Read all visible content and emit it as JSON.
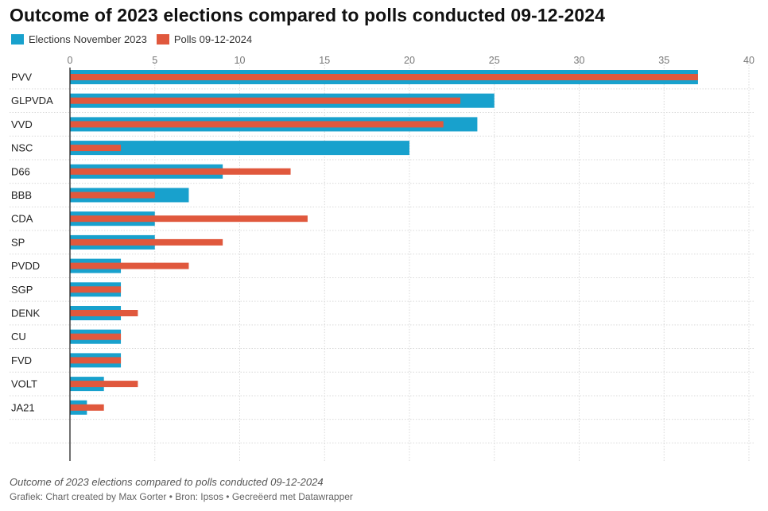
{
  "title": "Outcome of 2023 elections compared to polls conducted 09-12-2024",
  "colors": {
    "elections": "#18a1cd",
    "polls": "#e0583d",
    "grid": "#d9d9d9",
    "axis": "#222222"
  },
  "legend": [
    {
      "label": "Elections November 2023",
      "color": "#18a1cd"
    },
    {
      "label": "Polls 09-12-2024",
      "color": "#e0583d"
    }
  ],
  "chart_data": {
    "type": "bar",
    "orientation": "horizontal",
    "categories": [
      "PVV",
      "GLPVDA",
      "VVD",
      "NSC",
      "D66",
      "BBB",
      "CDA",
      "SP",
      "PVDD",
      "SGP",
      "DENK",
      "CU",
      "FVD",
      "VOLT",
      "JA21"
    ],
    "series": [
      {
        "name": "Elections November 2023",
        "values": [
          37,
          25,
          24,
          20,
          9,
          7,
          5,
          5,
          3,
          3,
          3,
          3,
          3,
          2,
          1
        ]
      },
      {
        "name": "Polls 09-12-2024",
        "values": [
          37,
          23,
          22,
          3,
          13,
          5,
          14,
          9,
          7,
          3,
          4,
          3,
          3,
          4,
          2
        ]
      }
    ],
    "xlim": [
      0,
      40
    ],
    "xticks": [
      0,
      5,
      10,
      15,
      20,
      25,
      30,
      35,
      40
    ],
    "grid": true,
    "legend_position": "top-left"
  },
  "footer": {
    "note": "Outcome of 2023 elections compared to polls conducted 09-12-2024",
    "credit": "Grafiek: Chart created by Max Gorter • Bron: Ipsos • Gecreëerd met Datawrapper"
  }
}
